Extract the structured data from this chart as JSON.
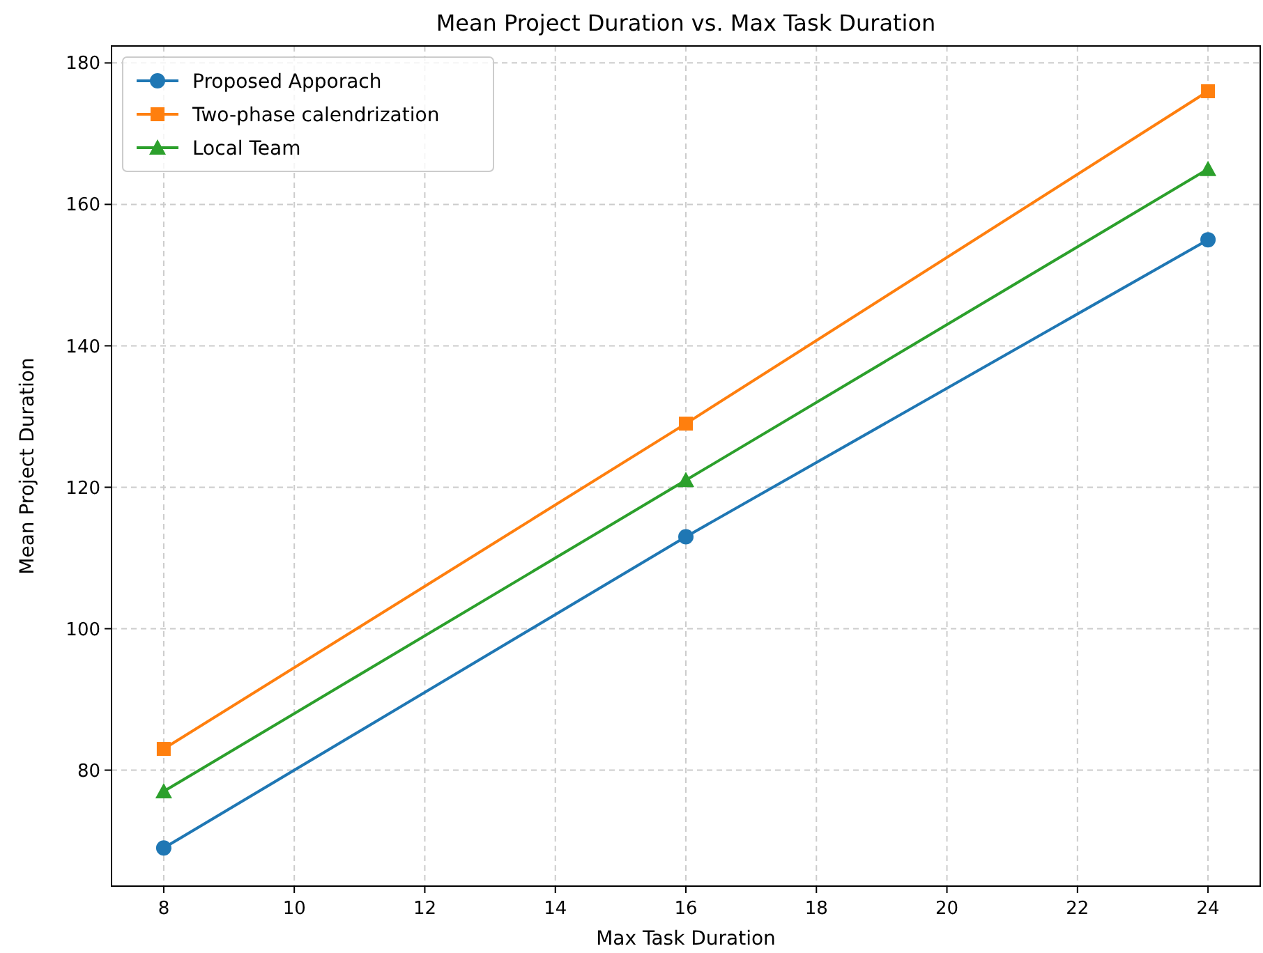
{
  "chart_data": {
    "type": "line",
    "title": "Mean Project Duration vs. Max Task Duration",
    "xlabel": "Max Task Duration",
    "ylabel": "Mean Project Duration",
    "x": [
      8,
      16,
      24
    ],
    "series": [
      {
        "name": "Proposed Apporach",
        "color": "#1f77b4",
        "marker": "circle",
        "values": [
          69,
          113,
          155
        ]
      },
      {
        "name": "Two-phase calendrization",
        "color": "#ff7f0e",
        "marker": "square",
        "values": [
          83,
          129,
          176
        ]
      },
      {
        "name": "Local Team",
        "color": "#2ca02c",
        "marker": "triangle",
        "values": [
          77,
          121,
          165
        ]
      }
    ],
    "xlim": [
      7.2,
      24.8
    ],
    "xticks": [
      8,
      10,
      12,
      14,
      16,
      18,
      20,
      22,
      24
    ],
    "ylim": [
      63.6,
      182.4
    ],
    "yticks": [
      80,
      100,
      120,
      140,
      160,
      180
    ],
    "grid": true,
    "legend": "top left",
    "line_style": "solid"
  }
}
